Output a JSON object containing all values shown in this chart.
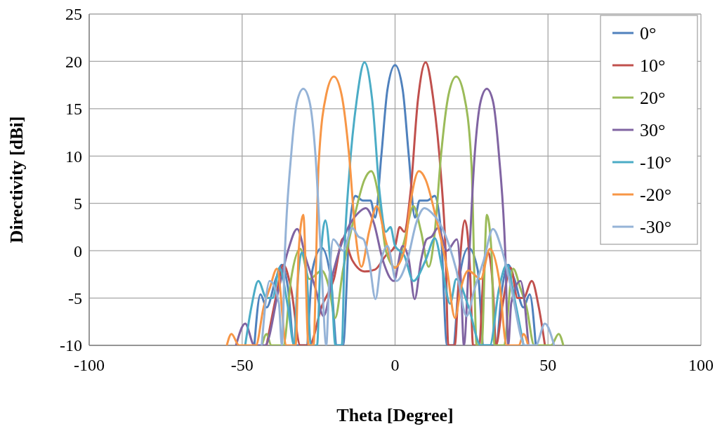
{
  "chart_data": {
    "type": "line",
    "xlabel": "Theta [Degree]",
    "ylabel": "Directivity [dBi]",
    "xlim": [
      -100,
      100
    ],
    "xticks": [
      -100,
      -50,
      0,
      50,
      100
    ],
    "ylim": [
      -10,
      25
    ],
    "yticks": [
      -10,
      -5,
      0,
      5,
      10,
      15,
      20,
      25
    ],
    "grid": true,
    "legend": "top right",
    "marker": "none",
    "line_style": "solid",
    "series": [
      {
        "name": "0°",
        "color": "#4f81bd",
        "x": [
          -46,
          -44,
          -42,
          -39,
          -37,
          -35,
          -33,
          -29,
          -27,
          -24,
          -21,
          -19,
          -17,
          -15,
          -13,
          -10.5,
          -8,
          -6.5,
          -4.5,
          -2.5,
          0,
          2.5,
          4.5,
          6.5,
          8,
          10.5,
          13,
          15,
          17,
          19,
          21,
          24,
          27,
          29,
          33,
          35,
          37,
          39,
          42,
          44,
          46
        ],
        "values": [
          -10,
          -4.6,
          -6,
          -3,
          -1.5,
          -4,
          -10,
          -10,
          -2,
          0.3,
          -3,
          -10,
          -10,
          2,
          5.8,
          5.3,
          5.3,
          3.5,
          10,
          17,
          19.6,
          17,
          10,
          3.5,
          5.3,
          5.3,
          5.8,
          2,
          -10,
          -10,
          -3,
          0.3,
          -2,
          -10,
          -10,
          -4,
          -1.5,
          -3,
          -6,
          -4.6,
          -10
        ]
      },
      {
        "name": "10°",
        "color": "#c0504d",
        "x": [
          -42,
          -39,
          -36.5,
          -34,
          -31,
          -28,
          -24,
          -20,
          -17,
          -14,
          -10,
          -6.6,
          -3,
          0,
          1.5,
          3,
          5,
          7.5,
          10,
          12.5,
          15,
          16.5,
          17.4,
          19.5,
          21,
          22.8,
          24.5,
          25.5,
          27.5,
          29,
          30.5,
          32,
          33,
          35,
          37.8,
          40,
          42,
          44.7,
          47,
          49
        ],
        "values": [
          -10,
          -5,
          -1.5,
          -4,
          -10,
          -10,
          -5.9,
          -3,
          1.3,
          -1,
          -2.2,
          -2,
          -0.5,
          0.5,
          2.5,
          2,
          6,
          16,
          19.9,
          16,
          8,
          0,
          -10,
          -10,
          -2,
          3.2,
          -2,
          -10,
          -10,
          -2,
          -0.2,
          -4,
          -10,
          -6,
          -1.8,
          -5,
          -5,
          -3.2,
          -6,
          -10
        ]
      },
      {
        "name": "20°",
        "color": "#9bbb59",
        "x": [
          -43.5,
          -42,
          -40.5,
          -36.5,
          -34,
          -31,
          -28,
          -24,
          -21.5,
          -19.6,
          -17,
          -13,
          -10,
          -7.8,
          -5,
          -3,
          0.2,
          3,
          6,
          8.5,
          11,
          13,
          15,
          17.5,
          20,
          22.5,
          25,
          26.7,
          28.3,
          30,
          31.5,
          32.5,
          35.5,
          38.6,
          41,
          43,
          45.5,
          51,
          53.5,
          55
        ],
        "values": [
          -10,
          -8.8,
          -10,
          -10,
          -3,
          0.2,
          -3,
          -2.1,
          -4,
          -7.1,
          -2,
          4,
          7.5,
          8.4,
          5,
          0,
          -1.8,
          1,
          4.7,
          2,
          -1.7,
          2,
          10,
          16.5,
          18.4,
          16.5,
          9,
          -10,
          -10,
          3.8,
          0,
          -10,
          -10,
          -1.9,
          -4,
          -6,
          -10,
          -10,
          -8.8,
          -10
        ]
      },
      {
        "name": "30°",
        "color": "#8064a2",
        "x": [
          -52,
          -49,
          -46,
          -42.5,
          -38,
          -35,
          -32,
          -29,
          -26,
          -23.4,
          -20,
          -16,
          -12,
          -9.6,
          -7,
          -4,
          -0.4,
          2.5,
          4.5,
          6.4,
          8.5,
          10.3,
          12,
          14,
          17,
          20.2,
          21.5,
          22.5,
          24,
          26,
          28,
          30,
          32,
          34,
          36,
          37,
          38,
          41,
          43.6
        ],
        "values": [
          -10,
          -7.7,
          -10,
          -10,
          -4,
          0,
          2.3,
          -1,
          -4,
          -6.9,
          -2,
          2,
          4,
          4.5,
          3,
          -1,
          -3.2,
          0.5,
          -1,
          -5.1,
          -1,
          1.2,
          1.5,
          2.4,
          0,
          1.2,
          -3,
          -10,
          -2,
          10,
          15.8,
          17.1,
          15.8,
          10,
          0,
          -10,
          -5.5,
          -3.2,
          -10
        ]
      },
      {
        "name": "-10°",
        "color": "#4bacc6",
        "x": [
          -49,
          -47,
          -44.7,
          -42,
          -40,
          -37.8,
          -35,
          -33,
          -32,
          -30.5,
          -29,
          -27.5,
          -25.5,
          -24.5,
          -22.8,
          -21,
          -19.5,
          -17.4,
          -16.5,
          -15,
          -12.5,
          -10,
          -7.5,
          -5,
          -3,
          -1.5,
          0,
          3,
          6,
          10,
          13,
          15.5,
          18,
          20,
          24,
          28,
          31,
          34,
          36.5,
          39,
          42
        ],
        "values": [
          -10,
          -6,
          -3.2,
          -5,
          -5,
          -1.8,
          -6,
          -10,
          -4,
          -0.2,
          -2,
          -10,
          -10,
          -2,
          3.2,
          -2,
          -10,
          -10,
          0,
          8,
          16,
          19.9,
          16,
          6,
          2,
          2.5,
          0.5,
          -0.5,
          -3.2,
          -1,
          1.3,
          -2,
          -5.6,
          -3,
          -5.9,
          -10,
          -10,
          -4,
          -1.5,
          -5,
          -10
        ]
      },
      {
        "name": "-20°",
        "color": "#f79646",
        "x": [
          -55,
          -53.5,
          -51,
          -45.5,
          -43,
          -41,
          -38.6,
          -35.5,
          -32.5,
          -31.5,
          -30,
          -28.3,
          -26.7,
          -25,
          -22.5,
          -20,
          -17.5,
          -15,
          -13,
          -11,
          -8.5,
          -6,
          -3,
          -0.2,
          3,
          5,
          7.8,
          10,
          13,
          17,
          19.6,
          21.5,
          24,
          28,
          31,
          34,
          36.5,
          40.5,
          42,
          43.5
        ],
        "values": [
          -10,
          -8.8,
          -10,
          -10,
          -6,
          -4,
          -1.9,
          -10,
          -10,
          0,
          3.8,
          -10,
          -10,
          9,
          16.5,
          18.4,
          16.5,
          10,
          2,
          -1.7,
          2,
          4.7,
          1,
          -1.8,
          0,
          5,
          8.4,
          7.5,
          4,
          -2,
          -7.1,
          -4,
          -2.1,
          -3,
          0.2,
          -3,
          -10,
          -10,
          -8.8,
          -10
        ]
      },
      {
        "name": "-30°",
        "color": "#95b3d7",
        "x": [
          -43.6,
          -41,
          -38,
          -37,
          -36,
          -34,
          -32,
          -30,
          -28,
          -26,
          -24,
          -22.5,
          -21.5,
          -20.2,
          -17,
          -14,
          -12,
          -10.3,
          -8.5,
          -6.4,
          -4.5,
          -2.5,
          0.4,
          4,
          7,
          9.6,
          12,
          16,
          20,
          23.4,
          26,
          29,
          32,
          35,
          38,
          42.5,
          46,
          49,
          52
        ],
        "values": [
          -10,
          -3.2,
          -5.5,
          -10,
          0,
          10,
          15.8,
          17.1,
          15.8,
          10,
          -2,
          -10,
          -3,
          1.2,
          0,
          2.4,
          1.5,
          1.2,
          -1,
          -5.1,
          -1,
          0.5,
          -3.2,
          -1,
          3,
          4.5,
          4,
          2,
          -2,
          -6.9,
          -4,
          -1,
          2.3,
          0,
          -4,
          -10,
          -10,
          -7.7,
          -10
        ]
      }
    ]
  }
}
